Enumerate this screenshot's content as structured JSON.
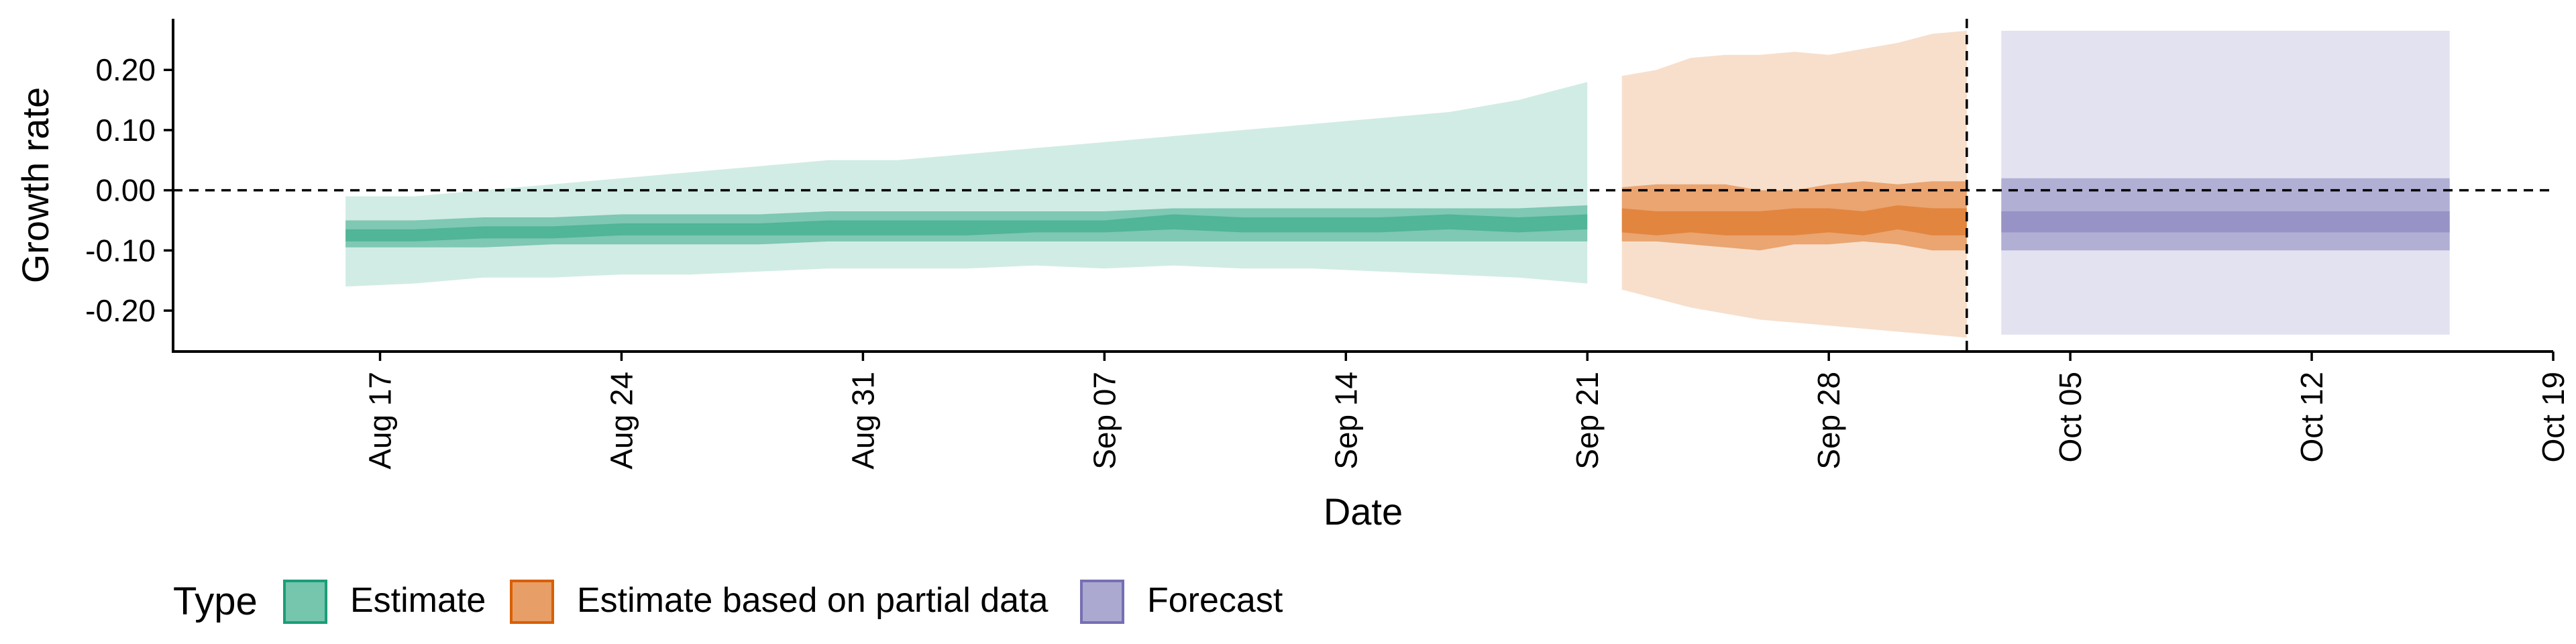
{
  "chart_data": {
    "type": "area",
    "title": "",
    "xlabel": "Date",
    "ylabel": "Growth rate",
    "x_range": [
      "2020-08-11",
      "2020-10-19"
    ],
    "ylim": [
      -0.268,
      0.285
    ],
    "y_ticks": [
      -0.2,
      -0.1,
      0.0,
      0.1,
      0.2
    ],
    "y_tick_labels": [
      "-0.20",
      "-0.10",
      "0.00",
      "0.10",
      "0.20"
    ],
    "x_ticks": [
      "2020-08-17",
      "2020-08-24",
      "2020-08-31",
      "2020-09-07",
      "2020-09-14",
      "2020-09-21",
      "2020-09-28",
      "2020-10-05",
      "2020-10-12",
      "2020-10-19"
    ],
    "x_tick_labels": [
      "Aug 17",
      "Aug 24",
      "Aug 31",
      "Sep 07",
      "Sep 14",
      "Sep 21",
      "Sep 28",
      "Oct 05",
      "Oct 12",
      "Oct 19"
    ],
    "reference_line_y": 0.0,
    "reference_line_date": "2020-10-02",
    "grid": false,
    "legend": {
      "title": "Type",
      "position": "bottom",
      "entries": [
        "Estimate",
        "Estimate based on partial data",
        "Forecast"
      ]
    },
    "colors": {
      "Estimate": "#1b9e77",
      "Estimate based on partial data": "#d95f02",
      "Forecast": "#7570b3"
    },
    "series": [
      {
        "name": "Estimate",
        "dates": [
          "2020-08-16",
          "2020-08-18",
          "2020-08-20",
          "2020-08-22",
          "2020-08-24",
          "2020-08-26",
          "2020-08-28",
          "2020-08-30",
          "2020-09-01",
          "2020-09-03",
          "2020-09-05",
          "2020-09-07",
          "2020-09-09",
          "2020-09-11",
          "2020-09-13",
          "2020-09-15",
          "2020-09-17",
          "2020-09-19",
          "2020-09-21"
        ],
        "upper90": [
          -0.01,
          -0.01,
          0.0,
          0.01,
          0.02,
          0.03,
          0.04,
          0.05,
          0.05,
          0.06,
          0.07,
          0.08,
          0.09,
          0.1,
          0.11,
          0.12,
          0.13,
          0.15,
          0.18
        ],
        "upper50": [
          -0.05,
          -0.05,
          -0.045,
          -0.045,
          -0.04,
          -0.04,
          -0.04,
          -0.035,
          -0.035,
          -0.035,
          -0.035,
          -0.035,
          -0.03,
          -0.03,
          -0.03,
          -0.03,
          -0.03,
          -0.03,
          -0.025
        ],
        "upper20": [
          -0.065,
          -0.065,
          -0.06,
          -0.06,
          -0.055,
          -0.055,
          -0.055,
          -0.05,
          -0.05,
          -0.05,
          -0.05,
          -0.05,
          -0.04,
          -0.045,
          -0.045,
          -0.045,
          -0.04,
          -0.045,
          -0.04
        ],
        "median": [
          -0.073,
          -0.073,
          -0.07,
          -0.068,
          -0.066,
          -0.065,
          -0.064,
          -0.062,
          -0.062,
          -0.062,
          -0.062,
          -0.06,
          -0.052,
          -0.058,
          -0.058,
          -0.058,
          -0.052,
          -0.056,
          -0.05
        ],
        "lower20": [
          -0.085,
          -0.085,
          -0.08,
          -0.08,
          -0.075,
          -0.075,
          -0.075,
          -0.075,
          -0.075,
          -0.075,
          -0.07,
          -0.07,
          -0.065,
          -0.07,
          -0.07,
          -0.07,
          -0.065,
          -0.07,
          -0.065
        ],
        "lower50": [
          -0.095,
          -0.095,
          -0.095,
          -0.09,
          -0.09,
          -0.09,
          -0.09,
          -0.085,
          -0.085,
          -0.085,
          -0.085,
          -0.085,
          -0.085,
          -0.085,
          -0.085,
          -0.085,
          -0.085,
          -0.085,
          -0.085
        ],
        "lower90": [
          -0.16,
          -0.155,
          -0.145,
          -0.145,
          -0.14,
          -0.14,
          -0.135,
          -0.13,
          -0.13,
          -0.13,
          -0.125,
          -0.13,
          -0.125,
          -0.13,
          -0.13,
          -0.135,
          -0.14,
          -0.145,
          -0.155
        ]
      },
      {
        "name": "Estimate based on partial data",
        "dates": [
          "2020-09-22",
          "2020-09-23",
          "2020-09-24",
          "2020-09-25",
          "2020-09-26",
          "2020-09-27",
          "2020-09-28",
          "2020-09-29",
          "2020-09-30",
          "2020-10-01",
          "2020-10-02"
        ],
        "upper90": [
          0.19,
          0.2,
          0.22,
          0.225,
          0.225,
          0.23,
          0.225,
          0.235,
          0.245,
          0.26,
          0.265
        ],
        "upper50": [
          0.005,
          0.01,
          0.01,
          0.01,
          0.0,
          0.0,
          0.01,
          0.015,
          0.01,
          0.015,
          0.015
        ],
        "upper20": [
          -0.03,
          -0.035,
          -0.035,
          -0.035,
          -0.035,
          -0.03,
          -0.03,
          -0.035,
          -0.025,
          -0.03,
          -0.03
        ],
        "median": [
          -0.052,
          -0.058,
          -0.058,
          -0.058,
          -0.056,
          -0.054,
          -0.052,
          -0.055,
          -0.042,
          -0.05,
          -0.052
        ],
        "lower20": [
          -0.07,
          -0.075,
          -0.07,
          -0.075,
          -0.075,
          -0.075,
          -0.07,
          -0.075,
          -0.065,
          -0.075,
          -0.075
        ],
        "lower50": [
          -0.085,
          -0.085,
          -0.09,
          -0.095,
          -0.1,
          -0.09,
          -0.09,
          -0.085,
          -0.09,
          -0.1,
          -0.1
        ],
        "lower90": [
          -0.165,
          -0.18,
          -0.195,
          -0.205,
          -0.215,
          -0.22,
          -0.225,
          -0.23,
          -0.235,
          -0.24,
          -0.245
        ]
      },
      {
        "name": "Forecast",
        "dates": [
          "2020-10-03",
          "2020-10-16"
        ],
        "upper90": [
          0.265,
          0.265
        ],
        "upper50": [
          0.02,
          0.02
        ],
        "upper20": [
          -0.035,
          -0.035
        ],
        "median": [
          -0.05,
          -0.05
        ],
        "lower20": [
          -0.07,
          -0.07
        ],
        "lower50": [
          -0.1,
          -0.1
        ],
        "lower90": [
          -0.24,
          -0.24
        ]
      }
    ]
  }
}
